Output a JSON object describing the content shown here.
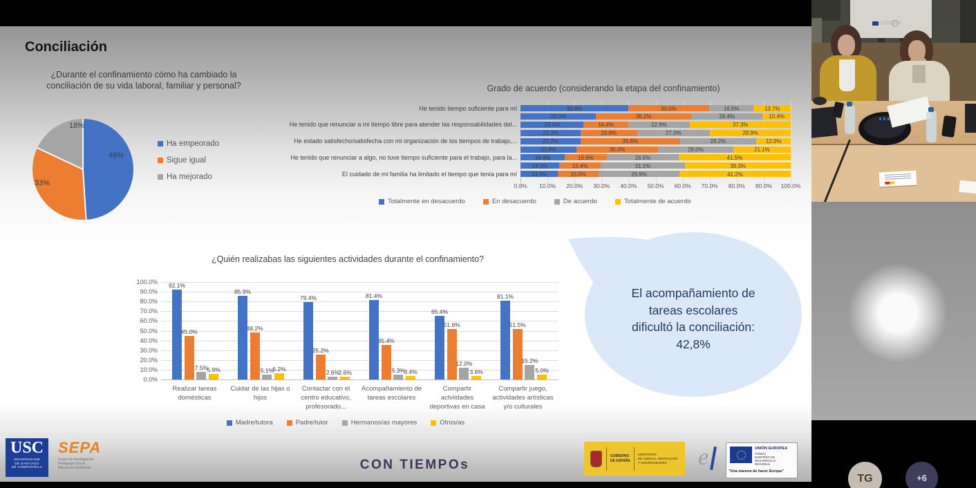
{
  "slide": {
    "title": "Conciliación"
  },
  "callout": {
    "text": "El acompañamiento de\ntareas escolares\ndificultó la conciliación:\n42,8%"
  },
  "footer": {
    "usc": {
      "acronym": "USC",
      "name": "UNIVERSIDADE\nDE SANTIAGO\nDE COMPOSTELA"
    },
    "sepa": {
      "acronym": "SEPA",
      "name": "Grupo de Investigación\nPedagogía Social\nEducación Ambiental"
    },
    "brand": "CON TIEMPOs",
    "gobierno": {
      "col1": "GOBIERNO\nDE ESPAÑA",
      "col2": "MINISTERIO\nDE CIENCIA, INNOVACIÓN\nY UNIVERSIDADES"
    },
    "elogo": "e",
    "eu": {
      "title": "UNIÓN EUROPEA",
      "subtitle": "FONDO\nEUROPEO DE\nDESARROLLO\nREGIONAL",
      "motto": "\"Una manera de hacer Europa\""
    }
  },
  "participants": {
    "avatars": [
      {
        "label": "TG",
        "bg": "#c6bdb2",
        "fg": "#4a3d33"
      },
      {
        "label": "+6",
        "bg": "#3d3c5a",
        "fg": "#d9d9e2"
      }
    ]
  },
  "chart_data": [
    {
      "type": "pie",
      "title": "¿Durante el confinamiento cómo ha cambiado la conciliación de su vida laboral, familiar y personal?",
      "labels": [
        "Ha empeorado",
        "Sigue igual",
        "Ha mejorado"
      ],
      "values": [
        49,
        33,
        18
      ],
      "data_labels": [
        "49%",
        "33%",
        "18%"
      ],
      "colors": [
        "#4472C4",
        "#ED7D31",
        "#A5A5A5"
      ],
      "legend_position": "right"
    },
    {
      "type": "bar",
      "subtype": "horizontal-stacked-100",
      "title": "Grado de acuerdo (considerando la etapa del confinamiento)",
      "series": [
        "Totalmente en desacuerdo",
        "En desacuerdo",
        "De acuerdo",
        "Totalmente de acuerdo"
      ],
      "colors": [
        "#4472C4",
        "#ED7D31",
        "#A5A5A5",
        "#FFC000"
      ],
      "visible_category_labels": [
        "He tenido tiempo suficiente para mí",
        "He tenido que renunciar a mi tiempo libre para atender las responsabilidades del...",
        "He estado satisfecho/satisfecha con mi organización de los tiempos de trabajo,...",
        "He tenido que renunciar a algo, no tuve tiempo suficiente para el trabajo, para la...",
        "El cuidado de mi familia ha limitado el tiempo que tenía para mí"
      ],
      "label_rows": [
        0,
        2,
        4,
        6,
        8
      ],
      "rows": [
        [
          39.8,
          30.0,
          16.5,
          13.7
        ],
        [
          28.0,
          35.2,
          26.4,
          10.4
        ],
        [
          23.4,
          16.4,
          22.9,
          37.3
        ],
        [
          22.3,
          20.8,
          27.0,
          29.9
        ],
        [
          22.2,
          36.8,
          28.2,
          12.9
        ],
        [
          20.8,
          30.0,
          28.0,
          21.1
        ],
        [
          16.4,
          15.6,
          26.5,
          41.5
        ],
        [
          14.3,
          15.4,
          31.1,
          39.3
        ],
        [
          13.9,
          15.0,
          29.9,
          41.2
        ]
      ],
      "x_ticks": [
        "0.0%",
        "10.0%",
        "20.0%",
        "30.0%",
        "40.0%",
        "50.0%",
        "60.0%",
        "70.0%",
        "80.0%",
        "90.0%",
        "100.0%"
      ],
      "xlim": [
        0,
        100
      ],
      "grid": true,
      "legend_position": "bottom"
    },
    {
      "type": "bar",
      "subtype": "vertical-grouped",
      "title": "¿Quién realizabas las siguientes actividades durante el confinamiento?",
      "categories": [
        "Realizar tareas\ndomésticas",
        "Cuidar de las hijas o\nhijos",
        "Contactar con el\ncentro educativo,\nprofesorado...",
        "Acompañamiento de\ntareas escolares",
        "Compartir\nactviidades\ndeportivas en casa",
        "Compartir juego,\nactividades artísticas\ny/o culturales"
      ],
      "series": [
        {
          "name": "Madre/tutora",
          "color": "#4472C4",
          "values": [
            92.1,
            85.9,
            79.4,
            81.4,
            65.4,
            81.1
          ]
        },
        {
          "name": "Padre/tutor",
          "color": "#ED7D31",
          "values": [
            45.0,
            48.2,
            25.2,
            35.4,
            51.6,
            51.5
          ]
        },
        {
          "name": "Hermanos/as mayores",
          "color": "#A5A5A5",
          "values": [
            7.5,
            5.1,
            2.6,
            5.3,
            12.0,
            15.2
          ]
        },
        {
          "name": "Otros/as",
          "color": "#FFC000",
          "values": [
            5.9,
            6.2,
            2.6,
            3.4,
            3.6,
            5.0
          ]
        }
      ],
      "y_ticks": [
        "0.0%",
        "10.0%",
        "20.0%",
        "30.0%",
        "40.0%",
        "50.0%",
        "60.0%",
        "70.0%",
        "80.0%",
        "90.0%",
        "100.0%"
      ],
      "ylim": [
        0,
        100
      ],
      "grid": true,
      "legend_position": "bottom"
    }
  ]
}
